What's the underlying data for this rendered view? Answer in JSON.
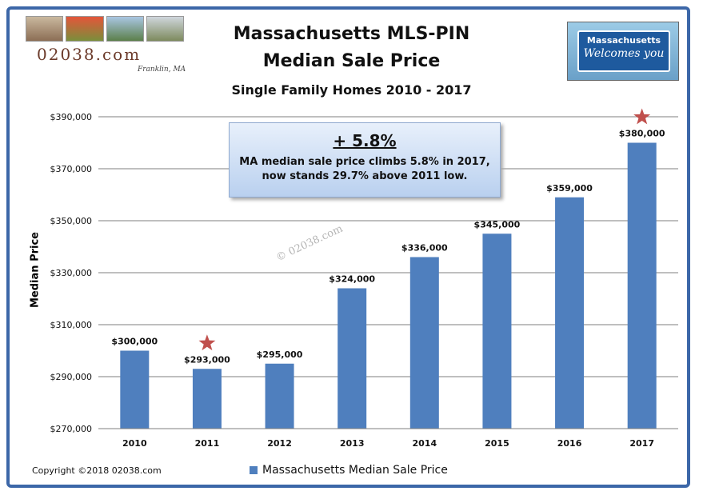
{
  "header": {
    "title_line1": "Massachusetts MLS-PIN",
    "title_line2": "Median Sale Price",
    "subtitle": "Single Family Homes 2010 - 2017"
  },
  "logo": {
    "site": "02038.com",
    "town": "Franklin, MA"
  },
  "sign": {
    "line1": "Massachusetts",
    "line2": "Welcomes you"
  },
  "callout": {
    "headline": "+ 5.8%",
    "line1": "MA median sale price climbs 5.8% in 2017,",
    "line2": "now stands 29.7% above 2011 low."
  },
  "watermark": "© 02038.com",
  "copyright": "Copyright ©2018 02038.com",
  "colors": {
    "bar": "#4f7fbe",
    "star": "#c0504d",
    "frame": "#3c67a8"
  },
  "chart_data": {
    "type": "bar",
    "categories": [
      "2010",
      "2011",
      "2012",
      "2013",
      "2014",
      "2015",
      "2016",
      "2017"
    ],
    "series": [
      {
        "name": "Massachusetts Median Sale Price",
        "values": [
          300000,
          293000,
          295000,
          324000,
          336000,
          345000,
          359000,
          380000
        ]
      }
    ],
    "data_labels": [
      "$300,000",
      "$293,000",
      "$295,000",
      "$324,000",
      "$336,000",
      "$345,000",
      "$359,000",
      "$380,000"
    ],
    "yticks": [
      270000,
      290000,
      310000,
      330000,
      350000,
      370000,
      390000
    ],
    "ytick_labels": [
      "$270,000",
      "$290,000",
      "$310,000",
      "$330,000",
      "$350,000",
      "$370,000",
      "$390,000"
    ],
    "ylim": [
      270000,
      390000
    ],
    "ylabel": "Median Price",
    "xlabel": "",
    "grid": true,
    "legend_position": "bottom",
    "starred_categories": [
      "2011",
      "2017"
    ]
  }
}
